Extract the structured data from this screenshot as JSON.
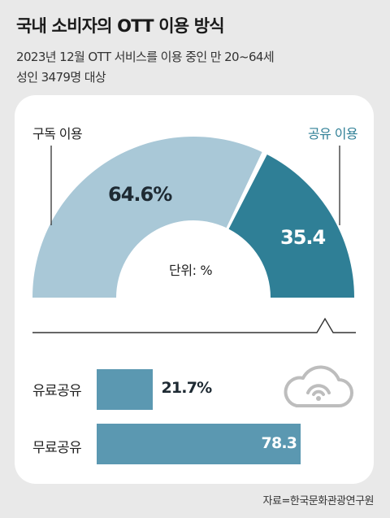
{
  "title": "국내 소비자의 OTT 이용 방식",
  "subtitle_line1": "2023년 12월 OTT 서비스를 이용 중인 만 20~64세",
  "subtitle_line2": "성인 3479명 대상",
  "source": "자료=한국문화관광연구원",
  "icon": "cloud-icon",
  "colors": {
    "subscribe": "#a9c8d7",
    "share": "#2f7f96",
    "bar": "#5b98b1",
    "background": "#e9e9e9"
  },
  "chart_data": [
    {
      "type": "pie",
      "style": "semicircle-donut",
      "unit_label": "단위: %",
      "categories": [
        "구독 이용",
        "공유 이용"
      ],
      "values": [
        64.6,
        35.4
      ],
      "value_labels": [
        "64.6%",
        "35.4"
      ]
    },
    {
      "type": "bar",
      "orientation": "horizontal",
      "categories": [
        "유료공유",
        "무료공유"
      ],
      "values": [
        21.7,
        78.3
      ],
      "value_labels": [
        "21.7%",
        "78.3"
      ],
      "xlim": [
        0,
        100
      ]
    }
  ]
}
